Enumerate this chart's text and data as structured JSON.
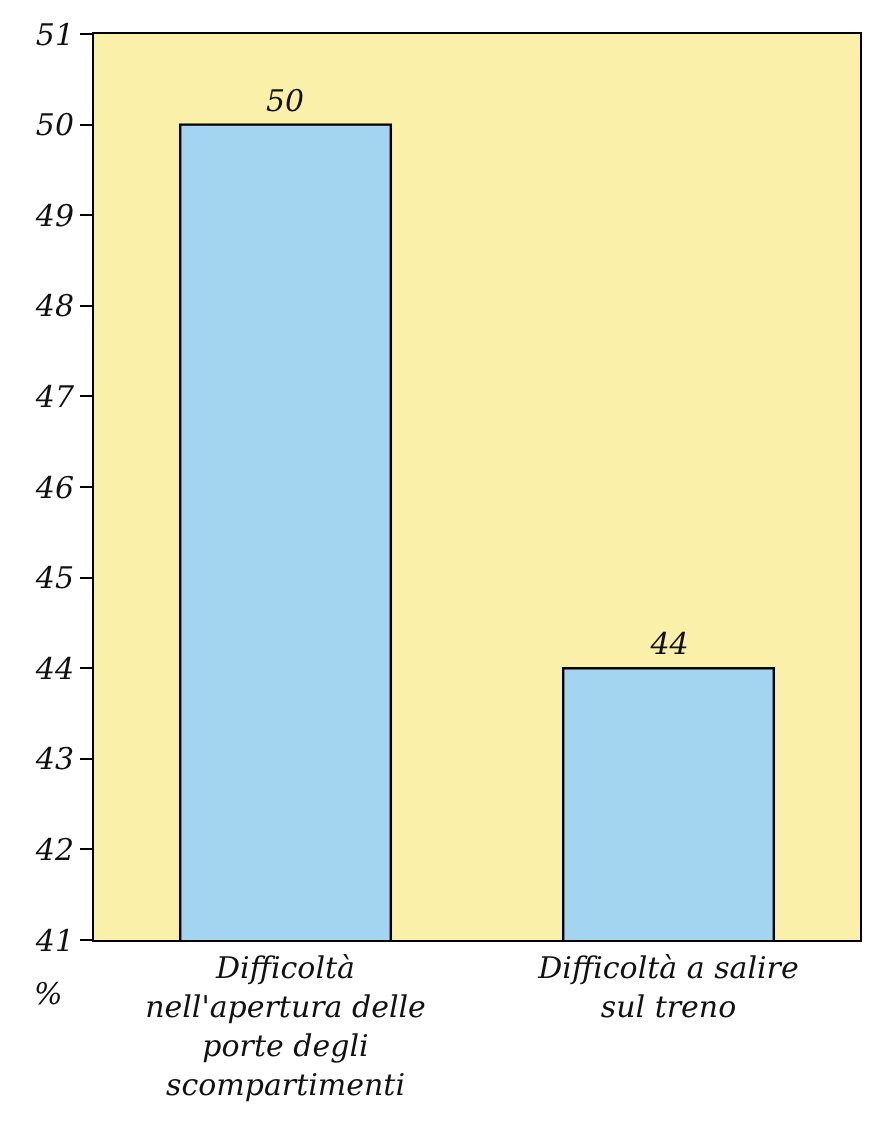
{
  "chart_data": {
    "type": "bar",
    "ylabel": "%",
    "categories": [
      "Difficoltà nell'apertura delle porte degli scompartimenti",
      "Difficoltà a salire sul treno"
    ],
    "values": [
      50,
      44
    ],
    "color": "#a3d5f1",
    "ylim": [
      41,
      51
    ],
    "yticks": [
      41,
      42,
      43,
      44,
      45,
      46,
      47,
      48,
      49,
      50,
      51
    ],
    "grid": false,
    "data_labels": true
  }
}
